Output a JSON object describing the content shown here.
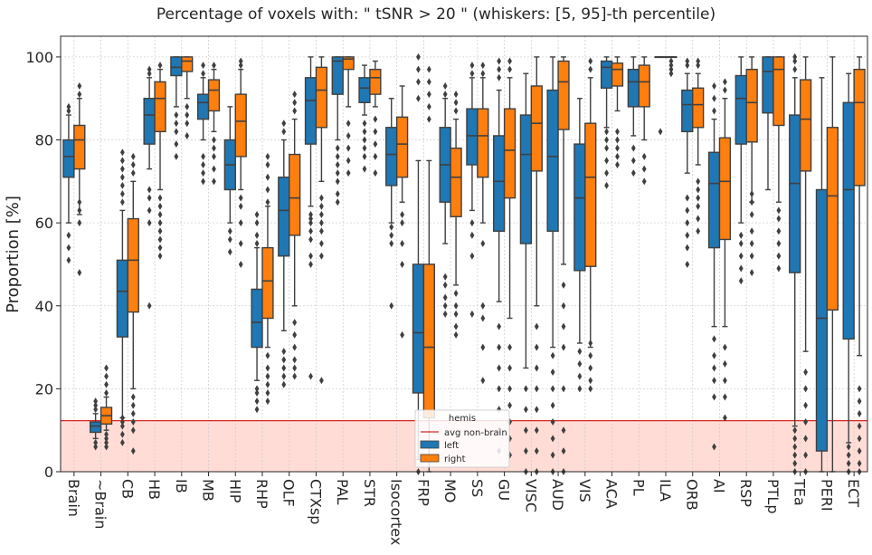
{
  "chart_data": {
    "type": "box",
    "title": "Percentage of voxels with:  \" tSNR  >  20 \"  (whiskers: [5, 95]-th percentile)",
    "xlabel": "",
    "ylabel": "Proportion [%]",
    "ylim": [
      0,
      105
    ],
    "yticks": [
      0,
      20,
      40,
      60,
      80,
      100
    ],
    "grid": true,
    "categories": [
      "Brain",
      "~Brain",
      "CB",
      "HB",
      "IB",
      "MB",
      "HIP",
      "RHP",
      "OLF",
      "CTXsp",
      "PAL",
      "STR",
      "Isocortex",
      "FRP",
      "MO",
      "SS",
      "GU",
      "VISC",
      "AUD",
      "VIS",
      "ACA",
      "PL",
      "ILA",
      "ORB",
      "AI",
      "RSP",
      "PTLp",
      "TEa",
      "PERI",
      "ECT"
    ],
    "reference_line": {
      "label": "avg non-brain",
      "value": 12.3,
      "color": "#d62728",
      "band_color": "#ffdcd6"
    },
    "legend": {
      "title": "hemis",
      "position": "bottom-center",
      "entries": [
        "avg non-brain",
        "left",
        "right"
      ]
    },
    "colors": {
      "left": "#1f77b4",
      "right": "#ff7f0e",
      "box_edge": "#3f3f3f",
      "grid": "#d0d0d0"
    },
    "series": [
      {
        "name": "left",
        "boxes": [
          {
            "whislo": 60,
            "q1": 71,
            "med": 76,
            "q3": 80,
            "whishi": 86,
            "fliers": [
              51,
              54,
              57,
              87,
              88
            ]
          },
          {
            "whislo": 8,
            "q1": 9.5,
            "med": 11,
            "q3": 12,
            "whishi": 14,
            "fliers": [
              6,
              7,
              15,
              16,
              17
            ]
          },
          {
            "whislo": 13,
            "q1": 32.5,
            "med": 43.5,
            "q3": 51,
            "whishi": 63,
            "fliers": [
              7,
              9,
              11,
              12,
              13,
              65,
              67,
              69,
              71,
              73,
              75,
              77
            ]
          },
          {
            "whislo": 73,
            "q1": 79,
            "med": 86,
            "q3": 90,
            "whishi": 95,
            "fliers": [
              40,
              60,
              63,
              66,
              68,
              96,
              97
            ]
          },
          {
            "whislo": 88,
            "q1": 95.5,
            "med": 97.5,
            "q3": 100,
            "whishi": 100,
            "fliers": [
              76,
              79,
              82,
              84,
              86
            ]
          },
          {
            "whislo": 80,
            "q1": 85,
            "med": 89,
            "q3": 91,
            "whishi": 95,
            "fliers": [
              70,
              72,
              74,
              76,
              96,
              98
            ]
          },
          {
            "whislo": 60,
            "q1": 68,
            "med": 74,
            "q3": 80,
            "whishi": 88,
            "fliers": [
              53,
              56,
              58
            ]
          },
          {
            "whislo": 22,
            "q1": 30,
            "med": 36,
            "q3": 44,
            "whishi": 54,
            "fliers": [
              15,
              17,
              19,
              20,
              55,
              57,
              60,
              62
            ]
          },
          {
            "whislo": 34,
            "q1": 52,
            "med": 63,
            "q3": 71,
            "whishi": 80,
            "fliers": [
              21,
              23,
              25,
              27,
              29,
              82,
              84
            ]
          },
          {
            "whislo": 64,
            "q1": 79,
            "med": 89.5,
            "q3": 95,
            "whishi": 100,
            "fliers": [
              23,
              50,
              52,
              56,
              58,
              60,
              61,
              62
            ]
          },
          {
            "whislo": 80,
            "q1": 91,
            "med": 99,
            "q3": 100,
            "whishi": 100,
            "fliers": [
              65,
              67,
              70,
              72,
              74,
              76,
              78
            ]
          },
          {
            "whislo": 86,
            "q1": 89,
            "med": 92.5,
            "q3": 95,
            "whishi": 98,
            "fliers": [
              73,
              76,
              78,
              80,
              82,
              84
            ]
          },
          {
            "whislo": 60,
            "q1": 69,
            "med": 76.5,
            "q3": 83,
            "whishi": 90,
            "fliers": [
              40,
              55,
              57,
              59
            ]
          },
          {
            "whislo": 3,
            "q1": 19,
            "med": 33.5,
            "q3": 50,
            "whishi": 75,
            "fliers": [
              0,
              90,
              94,
              97,
              100
            ]
          },
          {
            "whislo": 55,
            "q1": 65,
            "med": 74,
            "q3": 83,
            "whishi": 90,
            "fliers": [
              38,
              40,
              42,
              45,
              47,
              91,
              93
            ]
          },
          {
            "whislo": 63,
            "q1": 74,
            "med": 81,
            "q3": 87.5,
            "whishi": 95,
            "fliers": [
              38,
              52,
              57,
              60,
              96,
              98
            ]
          },
          {
            "whislo": 41,
            "q1": 58,
            "med": 70,
            "q3": 81,
            "whishi": 92,
            "fliers": [
              5,
              10,
              15,
              20,
              25,
              30,
              35,
              95,
              97,
              99
            ]
          },
          {
            "whislo": 25,
            "q1": 55,
            "med": 76.5,
            "q3": 86,
            "whishi": 96,
            "fliers": [
              0,
              5,
              10,
              15,
              20
            ]
          },
          {
            "whislo": 30,
            "q1": 58,
            "med": 76,
            "q3": 92,
            "whishi": 100,
            "fliers": [
              0,
              4,
              8,
              12,
              16,
              20,
              24,
              28
            ]
          },
          {
            "whislo": 31,
            "q1": 48.5,
            "med": 66,
            "q3": 79,
            "whishi": 90,
            "fliers": [
              20,
              23,
              26,
              29
            ]
          },
          {
            "whislo": 83,
            "q1": 92.5,
            "med": 97.5,
            "q3": 99,
            "whishi": 100,
            "fliers": [
              69,
              72,
              75,
              78,
              80,
              82
            ]
          },
          {
            "whislo": 81,
            "q1": 88,
            "med": 94,
            "q3": 97,
            "whishi": 100,
            "fliers": [
              72,
              75,
              78
            ]
          },
          {
            "whislo": 100,
            "q1": 100,
            "med": 100,
            "q3": 100,
            "whishi": 100,
            "fliers": [
              82
            ]
          },
          {
            "whislo": 72,
            "q1": 82,
            "med": 88.5,
            "q3": 92,
            "whishi": 96,
            "fliers": [
              50,
              54,
              57,
              60,
              63,
              66,
              98,
              99
            ]
          },
          {
            "whislo": 35,
            "q1": 54,
            "med": 69.5,
            "q3": 77,
            "whishi": 85,
            "fliers": [
              6,
              18,
              22,
              25,
              28,
              32,
              87,
              90,
              93
            ]
          },
          {
            "whislo": 60,
            "q1": 79,
            "med": 90,
            "q3": 95.5,
            "whishi": 100,
            "fliers": [
              46,
              49,
              52,
              55,
              57
            ]
          },
          {
            "whislo": 68,
            "q1": 86.5,
            "med": 96.5,
            "q3": 100,
            "whishi": 100,
            "fliers": []
          },
          {
            "whislo": 11,
            "q1": 48,
            "med": 69.5,
            "q3": 86,
            "whishi": 95,
            "fliers": [
              0,
              2,
              4,
              6,
              8,
              10,
              97,
              99,
              100
            ]
          },
          {
            "whislo": 0,
            "q1": 5,
            "med": 37,
            "q3": 68,
            "whishi": 95,
            "fliers": []
          },
          {
            "whislo": 7,
            "q1": 32,
            "med": 68,
            "q3": 89,
            "whishi": 96,
            "fliers": [
              0,
              2,
              4,
              6
            ]
          }
        ]
      },
      {
        "name": "right",
        "boxes": [
          {
            "whislo": 62,
            "q1": 73,
            "med": 80,
            "q3": 83.5,
            "whishi": 90,
            "fliers": [
              48,
              60,
              63,
              65,
              91,
              93
            ]
          },
          {
            "whislo": 10,
            "q1": 11.5,
            "med": 13.5,
            "q3": 15.5,
            "whishi": 18,
            "fliers": [
              6,
              7,
              8,
              9,
              19,
              21,
              23,
              25
            ]
          },
          {
            "whislo": 20,
            "q1": 38.5,
            "med": 51,
            "q3": 61,
            "whishi": 70,
            "fliers": [
              5,
              10,
              12,
              14,
              16,
              18,
              72,
              74,
              76
            ]
          },
          {
            "whislo": 68,
            "q1": 82,
            "med": 90,
            "q3": 94,
            "whishi": 97,
            "fliers": [
              52,
              54,
              56,
              58,
              60,
              62,
              64,
              66,
              98
            ]
          },
          {
            "whislo": 90,
            "q1": 96.5,
            "med": 99,
            "q3": 100,
            "whishi": 100,
            "fliers": [
              81,
              84,
              86,
              88
            ]
          },
          {
            "whislo": 82,
            "q1": 87,
            "med": 92,
            "q3": 94.5,
            "whishi": 97,
            "fliers": [
              70,
              73,
              76,
              78,
              80,
              98
            ]
          },
          {
            "whislo": 68,
            "q1": 76,
            "med": 84.5,
            "q3": 91,
            "whishi": 97,
            "fliers": [
              50,
              55,
              60,
              64,
              66,
              98,
              99
            ]
          },
          {
            "whislo": 30,
            "q1": 37,
            "med": 46,
            "q3": 54,
            "whishi": 64,
            "fliers": [
              17,
              19,
              21,
              23,
              25,
              28,
              65,
              68,
              71,
              74,
              76
            ]
          },
          {
            "whislo": 40,
            "q1": 57,
            "med": 66,
            "q3": 76.5,
            "whishi": 85,
            "fliers": [
              23,
              25,
              27,
              30,
              33,
              36,
              87,
              89,
              91
            ]
          },
          {
            "whislo": 70,
            "q1": 83,
            "med": 92,
            "q3": 97.5,
            "whishi": 100,
            "fliers": [
              22,
              52,
              55,
              58,
              60,
              62,
              64,
              66
            ]
          },
          {
            "whislo": 88,
            "q1": 97,
            "med": 99.5,
            "q3": 100,
            "whishi": 100,
            "fliers": [
              72,
              75,
              78,
              81,
              84
            ]
          },
          {
            "whislo": 88,
            "q1": 91,
            "med": 95,
            "q3": 97,
            "whishi": 99,
            "fliers": [
              72,
              76,
              79,
              82,
              85
            ]
          },
          {
            "whislo": 65,
            "q1": 71,
            "med": 79,
            "q3": 85.5,
            "whishi": 93,
            "fliers": [
              33,
              50,
              55,
              60,
              62
            ]
          },
          {
            "whislo": 0,
            "q1": 13,
            "med": 30,
            "q3": 50,
            "whishi": 75,
            "fliers": [
              85,
              88,
              91,
              94,
              97
            ]
          },
          {
            "whislo": 45,
            "q1": 61.5,
            "med": 71,
            "q3": 78,
            "whishi": 85,
            "fliers": [
              33,
              35,
              38,
              40,
              43,
              87,
              89,
              91
            ]
          },
          {
            "whislo": 60,
            "q1": 71,
            "med": 81,
            "q3": 87.5,
            "whishi": 95,
            "fliers": [
              22,
              30,
              37,
              40,
              55,
              96,
              98
            ]
          },
          {
            "whislo": 37,
            "q1": 66,
            "med": 77.5,
            "q3": 87.5,
            "whishi": 95,
            "fliers": [
              4,
              8,
              12,
              16,
              20,
              25,
              30,
              97,
              99
            ]
          },
          {
            "whislo": 40,
            "q1": 72.5,
            "med": 84,
            "q3": 93,
            "whishi": 100,
            "fliers": [
              0,
              5,
              10,
              15,
              20,
              25,
              30,
              35
            ]
          },
          {
            "whislo": 50,
            "q1": 82.5,
            "med": 94,
            "q3": 99,
            "whishi": 100,
            "fliers": [
              0,
              5,
              10,
              20,
              30,
              35,
              40,
              45
            ]
          },
          {
            "whislo": 30,
            "q1": 49.5,
            "med": 71,
            "q3": 84,
            "whishi": 95,
            "fliers": [
              20,
              22,
              25,
              28,
              31,
              97,
              99
            ]
          },
          {
            "whislo": 87,
            "q1": 93,
            "med": 97,
            "q3": 98.5,
            "whishi": 100,
            "fliers": [
              74,
              76,
              78,
              80,
              82
            ]
          },
          {
            "whislo": 80,
            "q1": 88,
            "med": 94,
            "q3": 98,
            "whishi": 100,
            "fliers": [
              70,
              73,
              76
            ]
          },
          {
            "whislo": 100,
            "q1": 100,
            "med": 100,
            "q3": 100,
            "whishi": 100,
            "fliers": [
              96,
              97,
              98,
              99
            ]
          },
          {
            "whislo": 74,
            "q1": 83,
            "med": 88.5,
            "q3": 92.5,
            "whishi": 96,
            "fliers": [
              58,
              61,
              64,
              66,
              68,
              70,
              98,
              99
            ]
          },
          {
            "whislo": 35,
            "q1": 56,
            "med": 70,
            "q3": 80.5,
            "whishi": 90,
            "fliers": [
              13,
              18,
              22,
              26,
              30,
              92,
              94
            ]
          },
          {
            "whislo": 65,
            "q1": 79.5,
            "med": 89,
            "q3": 97,
            "whishi": 100,
            "fliers": [
              48,
              52,
              55,
              58,
              62,
              65,
              67
            ]
          },
          {
            "whislo": 65,
            "q1": 83.5,
            "med": 97,
            "q3": 100,
            "whishi": 100,
            "fliers": [
              49,
              52,
              55,
              58,
              61,
              63
            ]
          },
          {
            "whislo": 29,
            "q1": 72.5,
            "med": 85,
            "q3": 94.5,
            "whishi": 100,
            "fliers": [
              0,
              4,
              8,
              12,
              16,
              20,
              24
            ]
          },
          {
            "whislo": 0,
            "q1": 39,
            "med": 66.5,
            "q3": 83,
            "whishi": 100,
            "fliers": []
          },
          {
            "whislo": 28,
            "q1": 69,
            "med": 89,
            "q3": 97,
            "whishi": 100,
            "fliers": [
              0,
              2,
              5,
              8,
              11,
              14,
              17,
              20
            ]
          }
        ]
      }
    ]
  }
}
